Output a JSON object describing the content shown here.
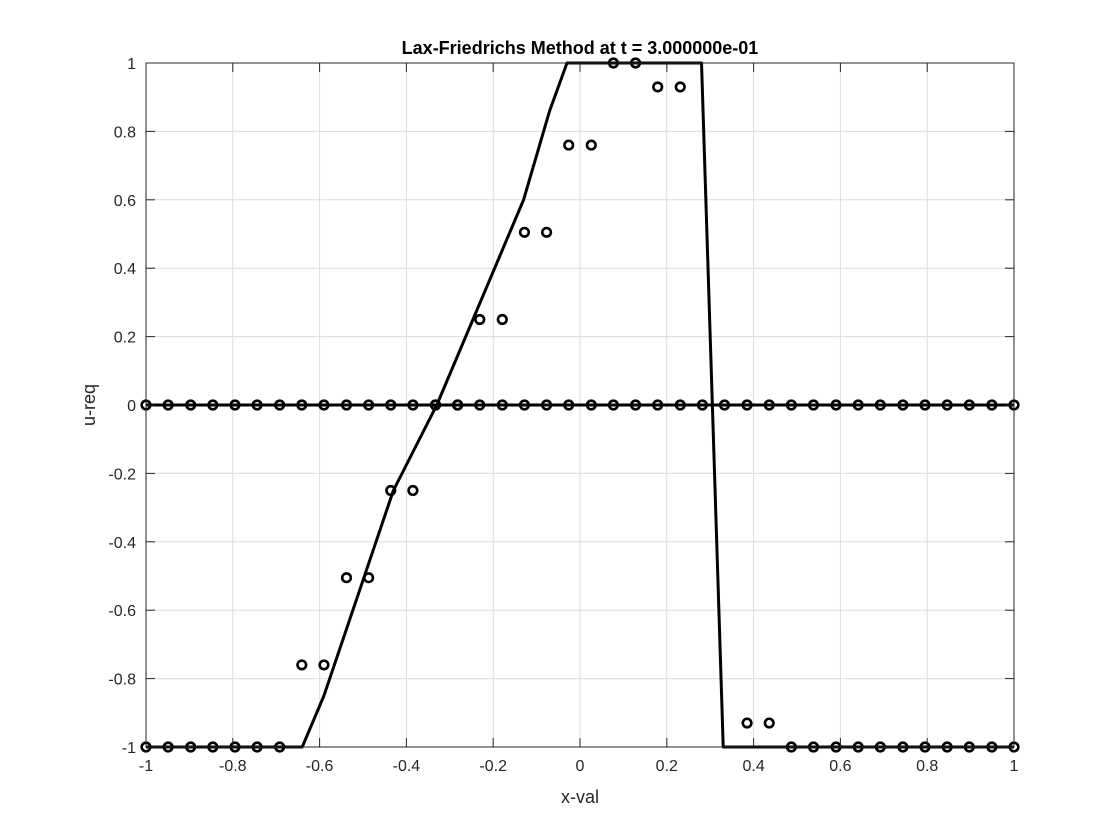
{
  "chart_data": {
    "type": "line",
    "title": "Lax-Friedrichs Method at t = 3.000000e-01",
    "xlabel": "x-val",
    "ylabel": "u-req",
    "xlim": [
      -1,
      1
    ],
    "ylim": [
      -1,
      1
    ],
    "xticks": [
      -1,
      -0.8,
      -0.6,
      -0.4,
      -0.2,
      0,
      0.2,
      0.4,
      0.6,
      0.8,
      1
    ],
    "yticks": [
      -1,
      -0.8,
      -0.6,
      -0.4,
      -0.2,
      0,
      0.2,
      0.4,
      0.6,
      0.8,
      1
    ],
    "xtick_labels": [
      "-1",
      "-0.8",
      "-0.6",
      "-0.4",
      "-0.2",
      "0",
      "0.2",
      "0.4",
      "0.6",
      "0.8",
      "1"
    ],
    "ytick_labels": [
      "-1",
      "-0.8",
      "-0.6",
      "-0.4",
      "-0.2",
      "0",
      "0.2",
      "0.4",
      "0.6",
      "0.8",
      "1"
    ],
    "grid": true,
    "colors": {
      "series": "#000000",
      "grid": "#dcdcdc",
      "axes": "#262626"
    },
    "series": [
      {
        "style": "line",
        "x": [
          -1,
          -0.64,
          -0.59,
          -0.43,
          -0.33,
          -0.13,
          -0.07,
          -0.03,
          0.28,
          0.33,
          1
        ],
        "y": [
          -1,
          -1,
          -0.85,
          -0.25,
          0,
          0.6,
          0.86,
          1,
          1,
          -1,
          -1
        ]
      },
      {
        "style": "line",
        "x": [
          -1,
          1
        ],
        "y": [
          0,
          0
        ]
      },
      {
        "style": "markers",
        "x": [
          -1,
          -0.949,
          -0.897,
          -0.846,
          -0.795,
          -0.744,
          -0.692,
          -0.641,
          -0.59,
          -0.538,
          -0.487,
          -0.436,
          -0.385,
          -0.333,
          -0.282,
          -0.231,
          -0.179,
          -0.128,
          -0.077,
          -0.026,
          0.026,
          0.077,
          0.128,
          0.179,
          0.231,
          0.282,
          0.333,
          0.385,
          0.436,
          0.487,
          0.538,
          0.59,
          0.641,
          0.692,
          0.744,
          0.795,
          0.846,
          0.897,
          0.949,
          1
        ],
        "y": [
          0,
          0,
          0,
          0,
          0,
          0,
          0,
          0,
          0,
          0,
          0,
          0,
          0,
          0,
          0,
          0,
          0,
          0,
          0,
          0,
          0,
          0,
          0,
          0,
          0,
          0,
          0,
          0,
          0,
          0,
          0,
          0,
          0,
          0,
          0,
          0,
          0,
          0,
          0,
          0
        ]
      },
      {
        "style": "markers",
        "x": [
          -1,
          -0.949,
          -0.897,
          -0.846,
          -0.795,
          -0.744,
          -0.692,
          -0.641,
          -0.59,
          -0.538,
          -0.487,
          -0.436,
          -0.385,
          -0.333,
          -0.282,
          -0.231,
          -0.179,
          -0.128,
          -0.077,
          -0.026,
          0.026,
          0.077,
          0.128,
          0.179,
          0.231,
          0.282,
          0.333,
          0.385,
          0.436,
          0.487,
          0.538,
          0.59,
          0.641,
          0.692,
          0.744,
          0.795,
          0.846,
          0.897,
          0.949,
          1
        ],
        "y": [
          -1,
          -1,
          -1,
          -1,
          -1,
          -1,
          -1,
          -0.76,
          -0.76,
          -0.505,
          -0.505,
          -0.25,
          -0.25,
          0,
          0,
          0.25,
          0.25,
          0.505,
          0.505,
          0.76,
          0.76,
          1,
          1,
          0.93,
          0.93,
          null,
          null,
          -0.93,
          -0.93,
          -1,
          -1,
          -1,
          -1,
          -1,
          -1,
          -1,
          -1,
          -1,
          -1,
          -1
        ]
      }
    ]
  }
}
